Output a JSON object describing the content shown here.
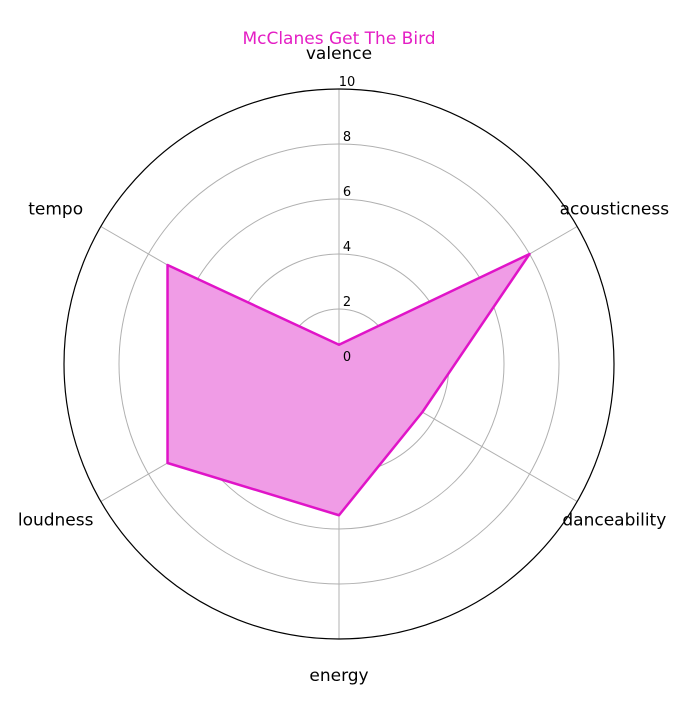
{
  "chart_data": {
    "type": "radar",
    "title": "McClanes Get The Bird",
    "axes": [
      "valence",
      "acousticness",
      "danceability",
      "energy",
      "loudness",
      "tempo"
    ],
    "series": [
      {
        "values": [
          0.7,
          8.0,
          3.5,
          5.5,
          7.2,
          7.2
        ]
      }
    ],
    "rlim": [
      0,
      10
    ],
    "rticks": [
      "0",
      "2",
      "4",
      "6",
      "8",
      "10"
    ],
    "grid": true,
    "colors": {
      "title": "#e41ec4",
      "line": "#e014c8",
      "fill": "#f09ce6",
      "grid": "#b0b0b0",
      "frame": "#000000"
    }
  }
}
